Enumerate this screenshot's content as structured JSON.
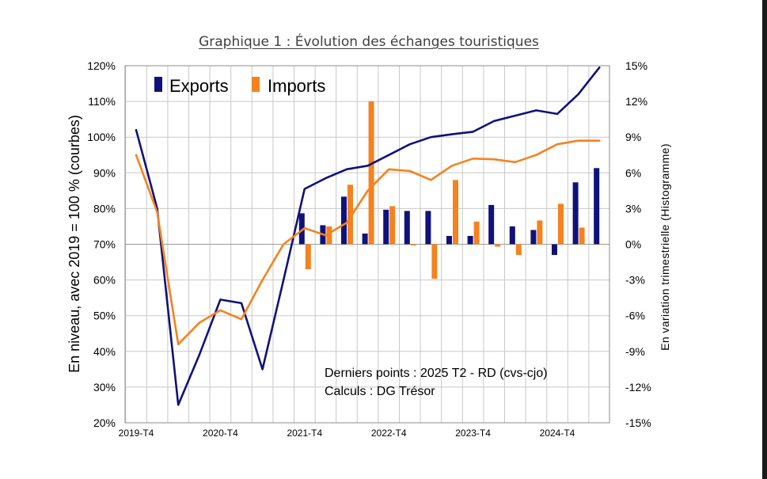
{
  "chart_data": {
    "type": "line+bar",
    "title": "Graphique 1 : Évolution des échanges touristiques",
    "ylabel_left": "En niveau, avec 2019 = 100 % (courbes)",
    "ylabel_right": "En variation trimestrielle  (Histogramme)",
    "ylim_left": [
      20,
      120
    ],
    "ylim_right": [
      -15,
      15
    ],
    "yticks_left": [
      "20%",
      "30%",
      "40%",
      "50%",
      "60%",
      "70%",
      "80%",
      "90%",
      "100%",
      "110%",
      "120%"
    ],
    "yticks_right": [
      "-15%",
      "-12%",
      "-9%",
      "-6%",
      "-3%",
      "0%",
      "3%",
      "6%",
      "9%",
      "12%",
      "15%"
    ],
    "x_tick_labels": [
      "2019-T4",
      "2020-T4",
      "2021-T4",
      "2022-T4",
      "2023-T4",
      "2024-T4"
    ],
    "x_periods": [
      "2019-T4",
      "2020-T1",
      "2020-T2",
      "2020-T3",
      "2020-T4",
      "2021-T1",
      "2021-T2",
      "2021-T3",
      "2021-T4",
      "2022-T1",
      "2022-T2",
      "2022-T3",
      "2022-T4",
      "2023-T1",
      "2023-T2",
      "2023-T3",
      "2023-T4",
      "2024-T1",
      "2024-T2",
      "2024-T3",
      "2024-T4",
      "2025-T1",
      "2025-T2"
    ],
    "grid": true,
    "legend": "top-left",
    "annotation_lines": [
      "Derniers points : 2025 T2 - RD (cvs-cjo)",
      "Calculs : DG Trésor"
    ],
    "series": [
      {
        "name": "Exports",
        "color": "#10127a",
        "line": [
          102,
          80,
          25,
          39,
          54.5,
          53.5,
          35,
          60,
          85.5,
          88.5,
          91,
          92,
          95,
          98,
          100,
          100.8,
          101.5,
          104.5,
          106,
          107.5,
          106.5,
          112,
          119.5
        ],
        "bars": [
          null,
          null,
          null,
          null,
          null,
          null,
          null,
          null,
          2.6,
          1.6,
          4.0,
          0.9,
          2.9,
          2.8,
          2.8,
          0.7,
          0.7,
          3.3,
          1.5,
          1.2,
          -0.9,
          5.2,
          6.4
        ]
      },
      {
        "name": "Imports",
        "color": "#f5821f",
        "line": [
          95,
          79,
          42,
          48,
          51.5,
          49,
          60,
          70,
          74.5,
          72.5,
          76,
          85,
          91,
          90.5,
          88,
          92,
          94,
          93.8,
          93,
          95,
          98,
          99,
          99
        ],
        "bars": [
          null,
          null,
          null,
          null,
          null,
          null,
          null,
          null,
          -2.1,
          1.5,
          5.0,
          12.0,
          3.2,
          -0.1,
          -2.9,
          5.4,
          1.9,
          -0.2,
          -0.9,
          2.0,
          3.4,
          1.4,
          0.0
        ]
      }
    ]
  }
}
